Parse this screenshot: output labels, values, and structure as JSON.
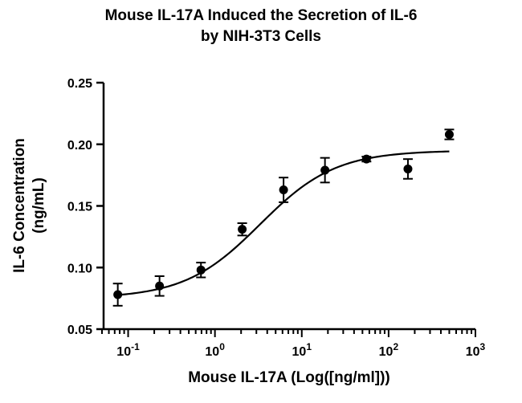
{
  "chart_data": {
    "type": "scatter",
    "title_line1": "Mouse IL-17A Induced the Secretion of IL-6",
    "title_line2": "by NIH-3T3 Cells",
    "xlabel": "Mouse IL-17A (Log([ng/ml]))",
    "ylabel_line1": "IL-6 Concentration",
    "ylabel_line2": "(ng/mL)",
    "x_scale": "log",
    "xlim": [
      0.05,
      1000
    ],
    "ylim": [
      0.05,
      0.25
    ],
    "x_tick_labels": [
      {
        "base": "10",
        "exp": "-1",
        "value": 0.1
      },
      {
        "base": "10",
        "exp": "0",
        "value": 1
      },
      {
        "base": "10",
        "exp": "1",
        "value": 10
      },
      {
        "base": "10",
        "exp": "2",
        "value": 100
      },
      {
        "base": "10",
        "exp": "3",
        "value": 1000
      }
    ],
    "y_ticks": [
      {
        "label": "0.05",
        "value": 0.05
      },
      {
        "label": "0.10",
        "value": 0.1
      },
      {
        "label": "0.15",
        "value": 0.15
      },
      {
        "label": "0.20",
        "value": 0.2
      },
      {
        "label": "0.25",
        "value": 0.25
      }
    ],
    "points": [
      {
        "x": 0.076,
        "y": 0.078,
        "err": 0.009
      },
      {
        "x": 0.23,
        "y": 0.085,
        "err": 0.008
      },
      {
        "x": 0.69,
        "y": 0.098,
        "err": 0.006
      },
      {
        "x": 2.06,
        "y": 0.131,
        "err": 0.005
      },
      {
        "x": 6.17,
        "y": 0.163,
        "err": 0.01
      },
      {
        "x": 18.5,
        "y": 0.179,
        "err": 0.01
      },
      {
        "x": 55.6,
        "y": 0.188,
        "err": 0.002
      },
      {
        "x": 167,
        "y": 0.18,
        "err": 0.008
      },
      {
        "x": 500,
        "y": 0.208,
        "err": 0.004
      }
    ],
    "fit_curve": {
      "bottom": 0.075,
      "top": 0.195,
      "ec50": 3.3,
      "hill": 1.0,
      "x_from": 0.076,
      "x_to": 500
    },
    "grid": false,
    "legend": "none",
    "marker_color": "#000000"
  }
}
